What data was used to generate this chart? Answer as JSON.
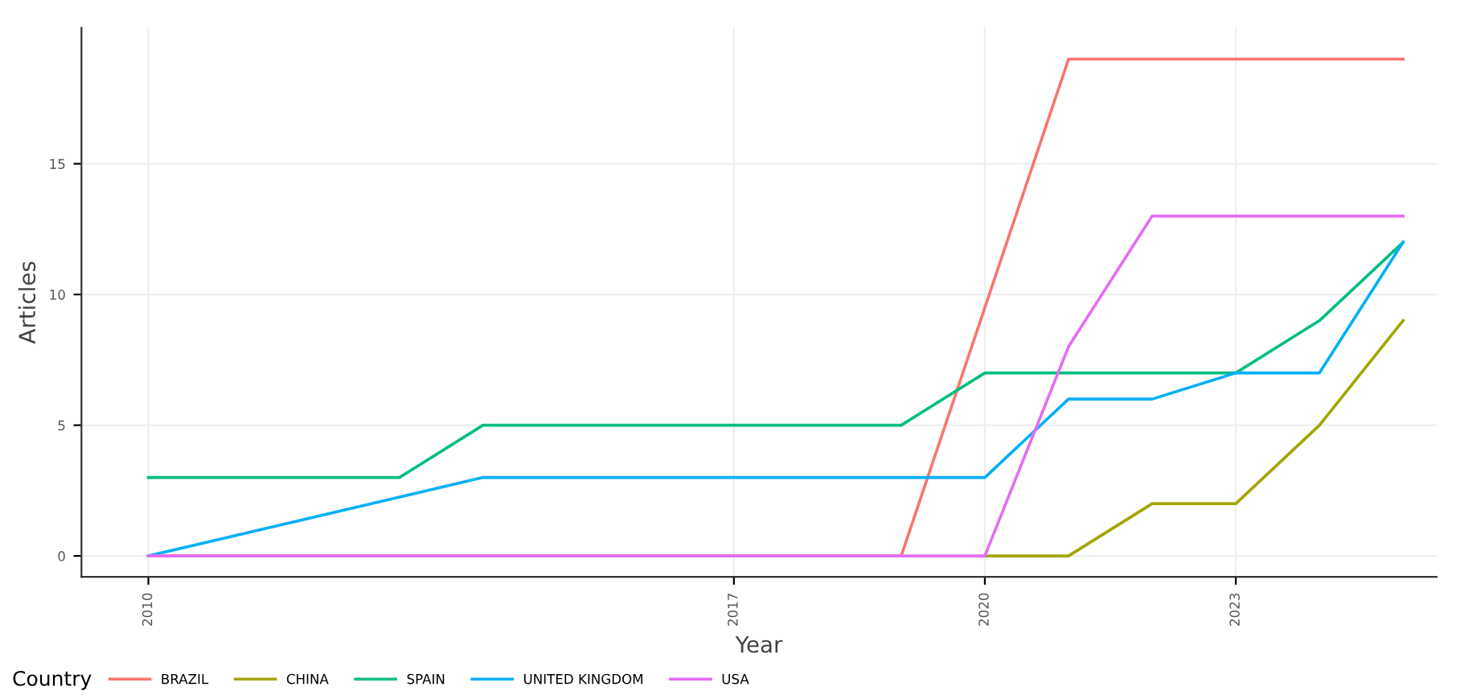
{
  "chart_data": {
    "type": "line",
    "xlabel": "Year",
    "ylabel": "Articles",
    "legend_title": "Country",
    "legend": "bottom",
    "grid": true,
    "marker": "none",
    "line_style": "solid",
    "xlim": [
      2009.2,
      2025.4
    ],
    "xticks": [
      2010,
      2017,
      2020,
      2023
    ],
    "ylim": [
      -0.8,
      20.2
    ],
    "yticks": [
      0,
      5,
      10,
      15
    ],
    "series": [
      {
        "name": "BRAZIL",
        "color": "#F8766D",
        "x": [
          2010,
          2019,
          2021,
          2025
        ],
        "values": [
          0,
          0,
          19,
          19
        ]
      },
      {
        "name": "CHINA",
        "color": "#A3A500",
        "x": [
          2020,
          2021,
          2022,
          2023,
          2024,
          2025
        ],
        "values": [
          0,
          0,
          2,
          2,
          5,
          9
        ]
      },
      {
        "name": "SPAIN",
        "color": "#00BF7D",
        "x": [
          2010,
          2013,
          2014,
          2019,
          2020,
          2023,
          2024,
          2025
        ],
        "values": [
          3,
          3,
          5,
          5,
          7,
          7,
          9,
          12
        ]
      },
      {
        "name": "UNITED KINGDOM",
        "color": "#00B0F6",
        "x": [
          2010,
          2014,
          2020,
          2021,
          2022,
          2023,
          2024,
          2025
        ],
        "values": [
          0,
          3,
          3,
          6,
          6,
          7,
          7,
          12
        ]
      },
      {
        "name": "USA",
        "color": "#E76BF3",
        "x": [
          2010,
          2020,
          2021,
          2022,
          2025
        ],
        "values": [
          0,
          0,
          8,
          13,
          13
        ]
      }
    ]
  }
}
